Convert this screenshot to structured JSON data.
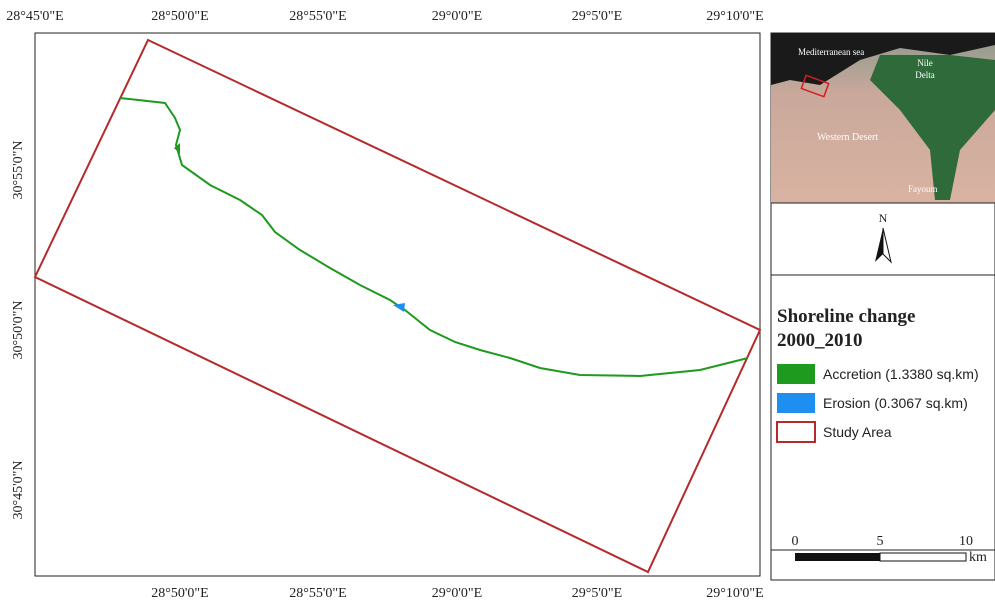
{
  "map": {
    "top_labels": [
      "28°45'0\"E",
      "28°50'0\"E",
      "28°55'0\"E",
      "29°0'0\"E",
      "29°5'0\"E",
      "29°10'0\"E"
    ],
    "bottom_labels": [
      "28°50'0\"E",
      "28°55'0\"E",
      "29°0'0\"E",
      "29°5'0\"E",
      "29°10'0\"E"
    ],
    "left_labels": [
      "30°55'0\"N",
      "30°50'0\"N",
      "30°45'0\"N"
    ]
  },
  "inset": {
    "sea": "Mediterranean sea",
    "delta": [
      "Nile",
      "Delta"
    ],
    "desert": "Western Desert",
    "city": "Fayoum"
  },
  "north": "N",
  "legend": {
    "title": [
      "Shoreline change",
      "2000_2010"
    ],
    "items": [
      {
        "label": "Accretion (1.3380 sq.km)",
        "color": "#1e9a1e"
      },
      {
        "label": "Erosion (0.3067 sq.km)",
        "color": "#1e8ff0"
      },
      {
        "label": "Study Area",
        "color": "#b52a2a"
      }
    ]
  },
  "scale": {
    "ticks": [
      "0",
      "5",
      "10"
    ],
    "unit": "km"
  }
}
